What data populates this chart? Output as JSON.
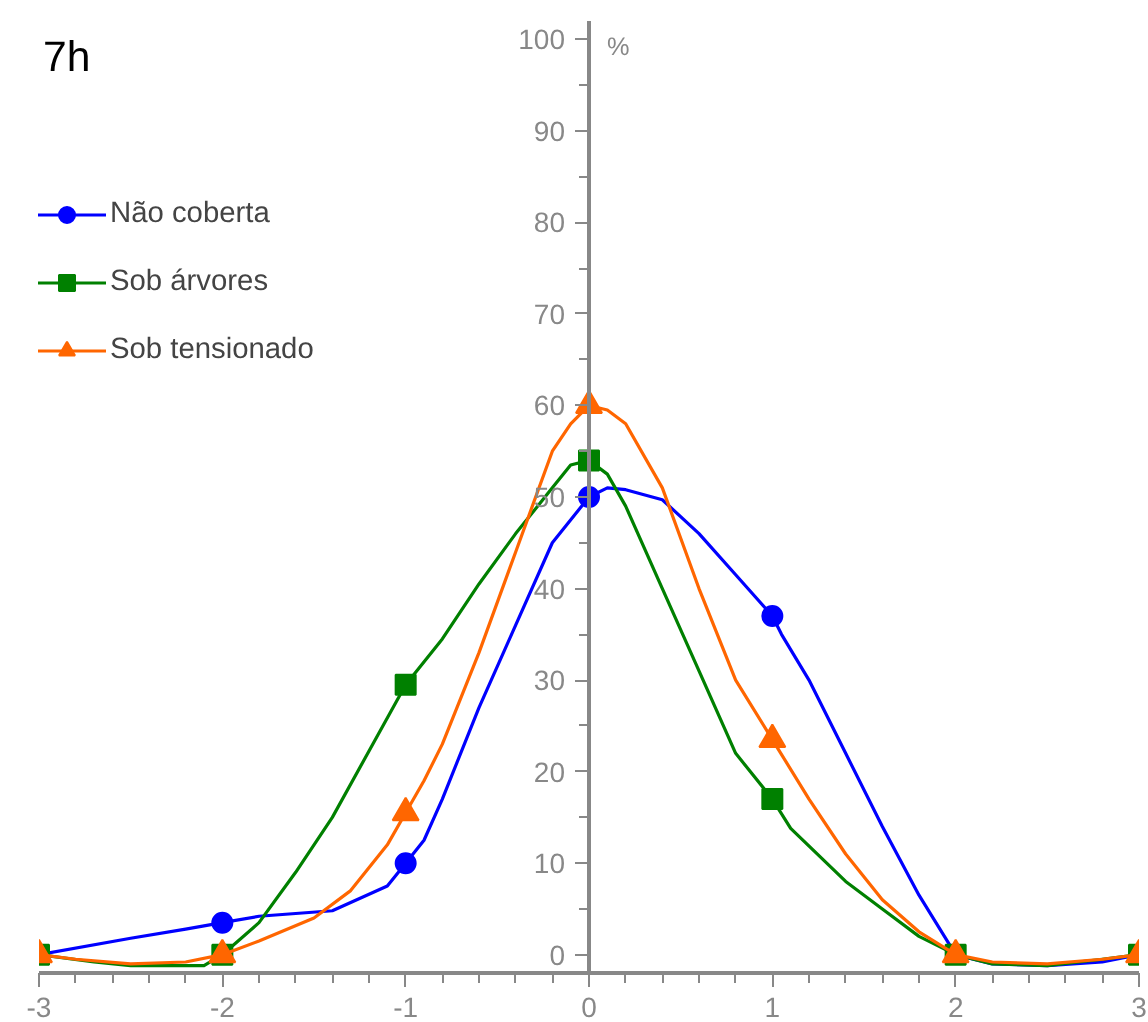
{
  "chart_data": {
    "type": "line",
    "title": "7h",
    "ylabel": "%",
    "xlim": [
      -3,
      3
    ],
    "ylim": [
      -2,
      102
    ],
    "xticks": [
      -3,
      -2,
      -1,
      0,
      1,
      2,
      3
    ],
    "yticks": [
      0,
      10,
      20,
      30,
      40,
      50,
      60,
      70,
      80,
      90,
      100
    ],
    "grid": false,
    "legend": "top left",
    "series": [
      {
        "type": "line",
        "color": "#0000ff",
        "x": [
          -3,
          -2.5,
          -2.2,
          -2,
          -1.8,
          -1.4,
          -1.1,
          -1,
          -0.9,
          -0.8,
          -0.6,
          -0.4,
          -0.2,
          0,
          0.1,
          0.2,
          0.4,
          0.6,
          0.8,
          1,
          1.05,
          1.2,
          1.4,
          1.6,
          1.8,
          2,
          2.2,
          2.5,
          2.8,
          3
        ],
        "values": [
          0,
          1.8,
          2.8,
          3.5,
          4.2,
          4.8,
          7.5,
          10,
          12.5,
          17,
          27,
          36,
          45,
          50,
          51,
          50.8,
          49.7,
          46,
          41.5,
          37,
          35,
          30,
          22,
          14,
          6.5,
          0,
          -1,
          -1.2,
          -0.8,
          0
        ]
      },
      {
        "type": "scatter",
        "name": "Não coberta",
        "color": "#0000ff",
        "marker": "circle",
        "x": [
          -2,
          -1,
          0,
          1
        ],
        "values": [
          3.5,
          10,
          50,
          37
        ]
      },
      {
        "type": "line",
        "color": "#008000",
        "x": [
          -3,
          -2.7,
          -2.5,
          -2.1,
          -2,
          -1.8,
          -1.6,
          -1.4,
          -1,
          -0.8,
          -0.6,
          -0.4,
          -0.2,
          -0.1,
          0,
          0.1,
          0.2,
          0.4,
          0.6,
          0.8,
          1,
          1.1,
          1.4,
          1.6,
          1.8,
          2,
          2.2,
          2.5,
          2.8,
          3
        ],
        "values": [
          0,
          -0.8,
          -1.2,
          -1.2,
          0,
          3.5,
          9,
          15,
          29.5,
          34.5,
          40.5,
          46,
          51,
          53.5,
          54,
          52.5,
          49,
          40,
          31,
          22,
          17,
          13.8,
          8,
          5,
          2,
          0,
          -1,
          -1.2,
          -0.5,
          0
        ]
      },
      {
        "type": "scatter",
        "name": "Sob árvores",
        "color": "#008000",
        "marker": "square",
        "x": [
          -3,
          -2,
          -1,
          0,
          1,
          2,
          3
        ],
        "values": [
          0,
          0,
          29.5,
          54,
          17,
          0,
          0
        ]
      },
      {
        "type": "line",
        "color": "#ff6600",
        "x": [
          -3,
          -2.8,
          -2.5,
          -2.2,
          -2,
          -1.8,
          -1.5,
          -1.3,
          -1.1,
          -1,
          -0.9,
          -0.8,
          -0.6,
          -0.4,
          -0.2,
          -0.1,
          0,
          0.1,
          0.2,
          0.4,
          0.6,
          0.8,
          1,
          1.2,
          1.4,
          1.6,
          1.8,
          2,
          2.2,
          2.5,
          2.8,
          3
        ],
        "values": [
          0,
          -0.5,
          -1,
          -0.8,
          0,
          1.5,
          4,
          7,
          12,
          15.5,
          19,
          23,
          33,
          44,
          55,
          58,
          60,
          59.5,
          58,
          51,
          40,
          30,
          23.5,
          17,
          11,
          6,
          2.5,
          0,
          -0.8,
          -1,
          -0.5,
          0
        ]
      },
      {
        "type": "scatter",
        "name": "Sob tensionado",
        "color": "#ff6600",
        "marker": "triangle",
        "x": [
          -3,
          -2,
          -1,
          0,
          1,
          2,
          3
        ],
        "values": [
          0,
          0,
          15.5,
          60,
          23.5,
          0,
          0
        ]
      }
    ]
  }
}
